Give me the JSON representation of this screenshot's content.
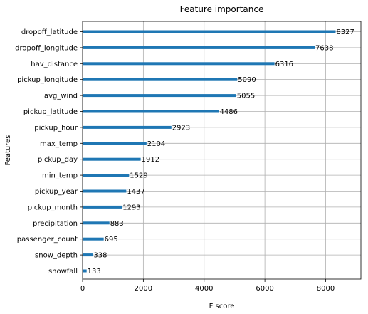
{
  "chart_data": {
    "type": "bar",
    "orientation": "horizontal",
    "title": "Feature importance",
    "xlabel": "F score",
    "ylabel": "Features",
    "xlim": [
      0,
      9160
    ],
    "xticks": [
      0,
      2000,
      4000,
      6000,
      8000
    ],
    "grid": true,
    "bar_color": "#1f77b4",
    "categories": [
      "dropoff_latitude",
      "dropoff_longitude",
      "hav_distance",
      "pickup_longitude",
      "avg_wind",
      "pickup_latitude",
      "pickup_hour",
      "max_temp",
      "pickup_day",
      "min_temp",
      "pickup_year",
      "pickup_month",
      "precipitation",
      "passenger_count",
      "snow_depth",
      "snowfall"
    ],
    "values": [
      8327,
      7638,
      6316,
      5090,
      5055,
      4486,
      2923,
      2104,
      1912,
      1529,
      1437,
      1293,
      883,
      695,
      338,
      133
    ]
  }
}
